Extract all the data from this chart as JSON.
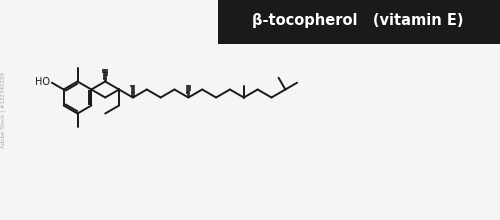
{
  "title": "β-tocopherol   (vitamin E)",
  "title_bg": "#1a1a1a",
  "title_color": "#ffffff",
  "line_color": "#1a1a1a",
  "bg_color": "#f5f5f5",
  "lw": 1.4,
  "watermark_text": "Adobe Stock | #132340259",
  "fig_width": 5.0,
  "fig_height": 2.2,
  "dpi": 100,
  "xlim": [
    0,
    10
  ],
  "ylim": [
    0,
    4.4
  ]
}
